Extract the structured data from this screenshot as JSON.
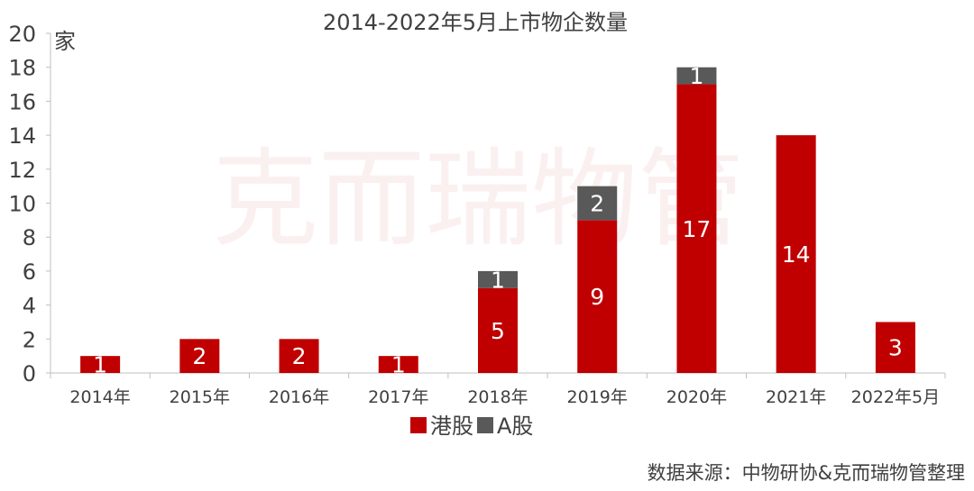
{
  "watermark": "克而瑞物管",
  "source": "数据来源：中物研协&克而瑞物管整理",
  "chart_data": {
    "type": "bar",
    "stacked": true,
    "title": "2014-2022年5月上市物企数量",
    "ylabel": "家",
    "xlabel": "",
    "ylim": [
      0,
      20
    ],
    "yticks": [
      0,
      2,
      4,
      6,
      8,
      10,
      12,
      14,
      16,
      18,
      20
    ],
    "grid": false,
    "legend_position": "bottom",
    "categories": [
      "2014年",
      "2015年",
      "2016年",
      "2017年",
      "2018年",
      "2019年",
      "2020年",
      "2021年",
      "2022年5月"
    ],
    "series": [
      {
        "name": "港股",
        "color": "#c00000",
        "values": [
          1,
          2,
          2,
          1,
          5,
          9,
          17,
          14,
          3
        ]
      },
      {
        "name": "A股",
        "color": "#595959",
        "values": [
          0,
          0,
          0,
          0,
          1,
          2,
          1,
          0,
          0
        ]
      }
    ]
  }
}
